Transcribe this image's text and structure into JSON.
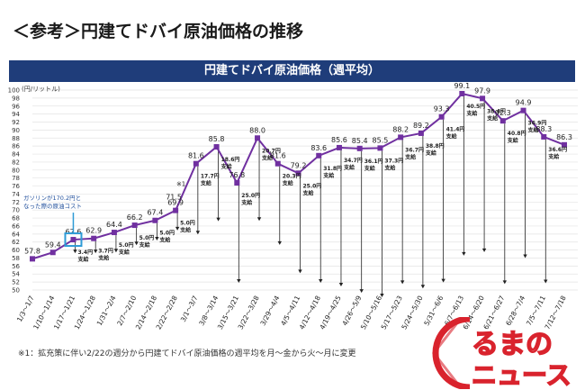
{
  "page_title": "＜参考＞円建てドバイ原油価格の推移",
  "footnote": "※1：拡充策に伴い2/22の週分から円建てドバイ原油価格の週平均を月～金から火～月に変更",
  "logo": {
    "line1": "るまの",
    "line2": "ニュース"
  },
  "colors": {
    "banner": "#1f3d7a",
    "line": "#7030a0",
    "callout": "#2e9bd6",
    "logo": "#d9232d"
  },
  "chart_data": {
    "type": "line",
    "title": "円建てドバイ原油価格（週平均）",
    "ylabel": "(円/リットル)",
    "ylim": [
      50,
      100
    ],
    "yticks": [
      50,
      52,
      54,
      56,
      58,
      60,
      62,
      64,
      66,
      68,
      70,
      72,
      74,
      76,
      78,
      80,
      82,
      84,
      86,
      88,
      90,
      92,
      94,
      96,
      98,
      100
    ],
    "grid": true,
    "categories": [
      "1/3～1/7",
      "1/10～1/14",
      "1/17～1/21",
      "1/24～1/28",
      "1/31～2/4",
      "2/7～2/10",
      "2/14～2/18",
      "2/22～2/28",
      "3/1～3/7",
      "3/8～3/14",
      "3/15～3/21",
      "3/22～3/28",
      "3/29～4/4",
      "4/5～4/11",
      "4/12～4/18",
      "4/19～4/25",
      "4/26～5/9",
      "5/10～5/16",
      "5/17～5/23",
      "5/24～5/30",
      "5/31～6/6",
      "6/7～6/13",
      "6/14～6/20",
      "6/21～6/27",
      "6/28～7/4",
      "7/5～7/11",
      "7/12～7/18"
    ],
    "series": [
      {
        "values": [
          57.8,
          59.4,
          62.6,
          62.9,
          64.4,
          66.2,
          67.4,
          69.9,
          81.6,
          85.8,
          76.8,
          88.0,
          81.6,
          79.2,
          83.6,
          85.6,
          85.4,
          85.5,
          88.2,
          89.2,
          93.3,
          99.1,
          97.9,
          92.3,
          94.9,
          88.3,
          86.3
        ],
        "labels": [
          "57.8",
          "59.4",
          "62.6",
          "62.9",
          "64.4",
          "66.2",
          "67.4",
          "69.9",
          "81.6",
          "85.8",
          "76.8",
          "88.0",
          "81.6",
          "79.2",
          "83.6",
          "85.6",
          "85.4",
          "85.5",
          "88.2",
          "89.2",
          "93.3",
          "99.1",
          "97.9",
          "92.3",
          "94.9",
          "88.3",
          "86.3"
        ]
      }
    ],
    "subsidy_labels": [
      "",
      "",
      "3.4円",
      "3.7円",
      "5.0円",
      "5.0円",
      "5.0円",
      "5.0円",
      "17.7円",
      "18.6円",
      "25.0円",
      "20.7円",
      "20.3円",
      "25.0円",
      "31.8円",
      "34.7円",
      "36.1円",
      "37.3円",
      "36.7円",
      "38.8円",
      "41.4円",
      "40.5円",
      "38.4円",
      "40.8円",
      "36.9円",
      "36.6円",
      ""
    ],
    "subsidy_suffix": "支給",
    "extra_label": "71.5",
    "note_mark": "※1",
    "callout": {
      "line1": "ガソリンが170.2円と",
      "line2": "なった際の原油コスト"
    }
  }
}
